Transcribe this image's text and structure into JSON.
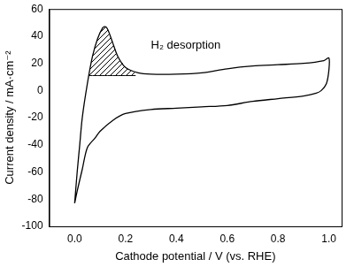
{
  "chart_data": {
    "type": "line",
    "x_label": "Cathode potential / V (vs. RHE)",
    "y_label": "Current density / mA·cm⁻²",
    "annotations": [
      {
        "text": "H₂ desorption",
        "x": 0.3,
        "y": 33
      }
    ],
    "series": [
      {
        "color": "#000000",
        "x": [
          0.0,
          0.01,
          0.02,
          0.03,
          0.05,
          0.07,
          0.09,
          0.11,
          0.12,
          0.13,
          0.15,
          0.17,
          0.2,
          0.25,
          0.3,
          0.4,
          0.5,
          0.6,
          0.7,
          0.8,
          0.9,
          0.98,
          1.0,
          1.0,
          0.99,
          0.97,
          0.95,
          0.9,
          0.8,
          0.7,
          0.6,
          0.5,
          0.4,
          0.3,
          0.2,
          0.15,
          0.1,
          0.08,
          0.05,
          0.03,
          0.01,
          0.0
        ],
        "values": [
          -83,
          -60,
          -40,
          -20,
          5,
          25,
          38,
          46,
          47,
          45,
          35,
          25,
          17,
          13,
          12,
          12,
          13,
          16,
          18,
          19,
          20,
          22,
          24,
          15,
          5,
          0,
          -2,
          -4,
          -6,
          -8,
          -11,
          -12,
          -13,
          -14,
          -17,
          -22,
          -30,
          -35,
          -42,
          -58,
          -74,
          -83
        ]
      }
    ],
    "shaded_region": {
      "x": [
        0.056,
        0.07,
        0.09,
        0.11,
        0.12,
        0.13,
        0.15,
        0.17,
        0.2,
        0.24
      ],
      "upper": [
        11,
        25,
        38,
        46,
        47,
        45,
        35,
        25,
        17,
        13
      ],
      "lower": [
        11,
        11,
        11,
        11,
        11,
        11,
        11,
        11,
        11,
        11
      ]
    },
    "xlim": [
      -0.1,
      1.05
    ],
    "xticks": [
      {
        "value": 0,
        "label": "0.0"
      },
      0.2,
      0.4,
      0.6,
      0.8,
      {
        "value": 1,
        "label": "1.0"
      }
    ],
    "ylim": [
      -100,
      60
    ],
    "yticks": [
      -100,
      -80,
      -60,
      -40,
      -20,
      0,
      20,
      40,
      60
    ],
    "grid": false
  }
}
